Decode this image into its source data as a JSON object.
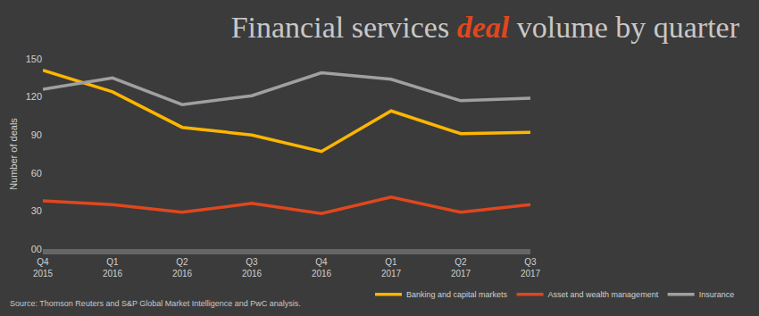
{
  "chart_data": {
    "type": "line",
    "title": "Financial services deal volume by quarter",
    "y_label": "Number of deals",
    "categories": [
      "Q4 2015",
      "Q1 2016",
      "Q2 2016",
      "Q3 2016",
      "Q4 2016",
      "Q1 2017",
      "Q2 2017",
      "Q3 2017"
    ],
    "series": [
      {
        "name": "Banking and capital markets",
        "color": "#ffb600",
        "values": [
          141,
          124,
          96,
          90,
          77,
          109,
          91,
          92
        ]
      },
      {
        "name": "Asset and wealth management",
        "color": "#e0471e",
        "values": [
          38,
          35,
          29,
          36,
          28,
          41,
          29,
          35
        ]
      },
      {
        "name": "Insurance",
        "color": "#a0a0a0",
        "values": [
          126,
          135,
          114,
          121,
          139,
          134,
          117,
          119
        ]
      }
    ],
    "ylim": [
      0,
      150
    ],
    "yticks": [
      {
        "value": 0,
        "label": "00"
      },
      30,
      60,
      90,
      120,
      150
    ],
    "grid": false,
    "legend": "bottom right",
    "source": "Source: Thomson Reuters and S&P Global Market Intelligence and PwC analysis."
  }
}
